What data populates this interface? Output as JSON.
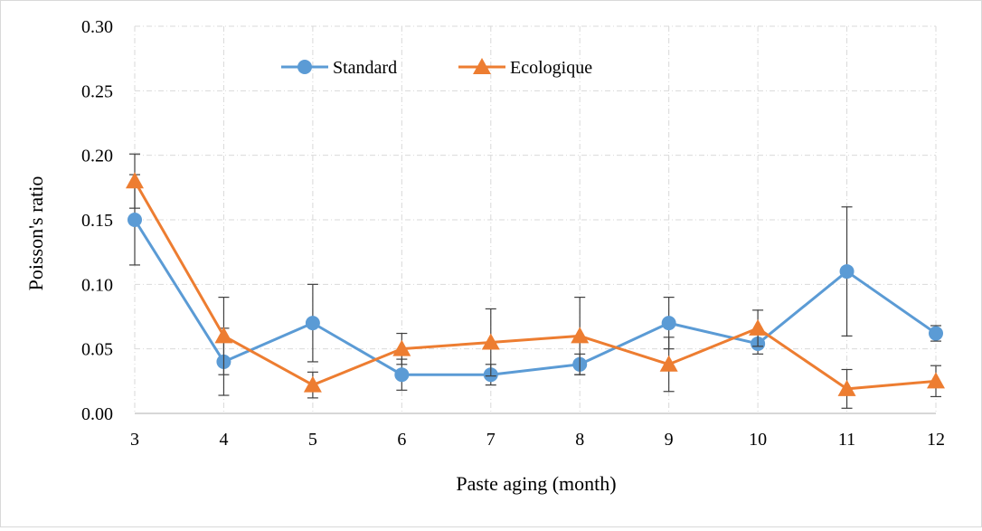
{
  "chart_data": {
    "type": "line",
    "xlabel": "Paste aging (month)",
    "ylabel": "Poisson's ratio",
    "x": [
      3,
      4,
      5,
      6,
      7,
      8,
      9,
      10,
      11,
      12
    ],
    "xlim": [
      3,
      12
    ],
    "ylim": [
      0,
      0.3
    ],
    "x_ticks": [
      "3",
      "4",
      "5",
      "6",
      "7",
      "8",
      "9",
      "10",
      "11",
      "12"
    ],
    "y_ticks": [
      "0.00",
      "0.05",
      "0.10",
      "0.15",
      "0.20",
      "0.25",
      "0.30"
    ],
    "grid": true,
    "legend_position": "top-left inside",
    "series": [
      {
        "name": "Standard",
        "color": "#5B9BD5",
        "marker": "circle",
        "values": [
          0.15,
          0.04,
          0.07,
          0.03,
          0.03,
          0.038,
          0.07,
          0.054,
          0.11,
          0.062
        ],
        "error": [
          0.035,
          0.026,
          0.03,
          0.012,
          0.008,
          0.008,
          0.02,
          0.008,
          0.05,
          0.006
        ]
      },
      {
        "name": "Ecologique",
        "color": "#ED7D31",
        "marker": "triangle",
        "values": [
          0.18,
          0.06,
          0.022,
          0.05,
          0.055,
          0.06,
          0.038,
          0.066,
          0.019,
          0.025
        ],
        "error": [
          0.021,
          0.03,
          0.01,
          0.012,
          0.026,
          0.03,
          0.021,
          0.014,
          0.015,
          0.012
        ]
      }
    ]
  }
}
